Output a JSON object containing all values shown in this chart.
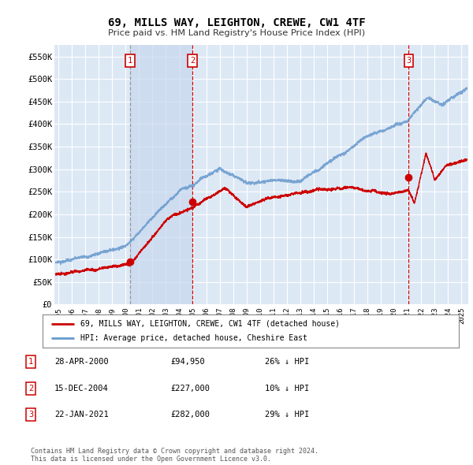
{
  "title": "69, MILLS WAY, LEIGHTON, CREWE, CW1 4TF",
  "subtitle": "Price paid vs. HM Land Registry's House Price Index (HPI)",
  "bg_color": "#ffffff",
  "plot_bg_color": "#dde8f5",
  "shade_color": "#c8d8ee",
  "grid_color": "#ffffff",
  "hpi_color": "#6699cc",
  "sale_color": "#cc0000",
  "vline1_color": "#aaaaaa",
  "vline23_color": "#cc0000",
  "sale_marker_color": "#cc0000",
  "ylim": [
    0,
    575000
  ],
  "yticks": [
    0,
    50000,
    100000,
    150000,
    200000,
    250000,
    300000,
    350000,
    400000,
    450000,
    500000,
    550000
  ],
  "ytick_labels": [
    "£0",
    "£50K",
    "£100K",
    "£150K",
    "£200K",
    "£250K",
    "£300K",
    "£350K",
    "£400K",
    "£450K",
    "£500K",
    "£550K"
  ],
  "xlim_start": 1994.7,
  "xlim_end": 2025.5,
  "xticks": [
    1995,
    1996,
    1997,
    1998,
    1999,
    2000,
    2001,
    2002,
    2003,
    2004,
    2005,
    2006,
    2007,
    2008,
    2009,
    2010,
    2011,
    2012,
    2013,
    2014,
    2015,
    2016,
    2017,
    2018,
    2019,
    2020,
    2021,
    2022,
    2023,
    2024,
    2025
  ],
  "transactions": [
    {
      "label": "1",
      "date_num": 2000.32,
      "price": 94950,
      "vline_style": "dashed_gray"
    },
    {
      "label": "2",
      "date_num": 2004.96,
      "price": 227000,
      "vline_style": "dashed_red"
    },
    {
      "label": "3",
      "date_num": 2021.06,
      "price": 282000,
      "vline_style": "dashed_red"
    }
  ],
  "shade_x1": 2000.32,
  "shade_x2": 2004.96,
  "legend_entries": [
    {
      "label": "69, MILLS WAY, LEIGHTON, CREWE, CW1 4TF (detached house)",
      "color": "#cc0000"
    },
    {
      "label": "HPI: Average price, detached house, Cheshire East",
      "color": "#6699cc"
    }
  ],
  "table_rows": [
    {
      "num": "1",
      "date": "28-APR-2000",
      "price": "£94,950",
      "hpi": "26% ↓ HPI"
    },
    {
      "num": "2",
      "date": "15-DEC-2004",
      "price": "£227,000",
      "hpi": "10% ↓ HPI"
    },
    {
      "num": "3",
      "date": "22-JAN-2021",
      "price": "£282,000",
      "hpi": "29% ↓ HPI"
    }
  ],
  "footer": "Contains HM Land Registry data © Crown copyright and database right 2024.\nThis data is licensed under the Open Government Licence v3.0."
}
